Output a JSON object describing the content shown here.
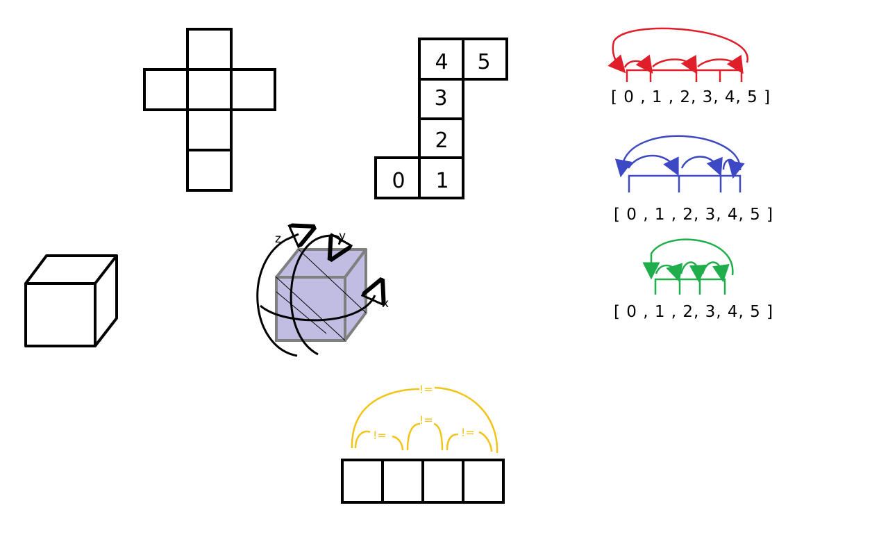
{
  "face_net_labels": [
    "0",
    "1",
    "2",
    "3",
    "4",
    "5"
  ],
  "index_arrays": [
    {
      "text": "[ 0 , 1 , 2, 3, 4, 5 ]",
      "color": "#e01e2a"
    },
    {
      "text": "[ 0 , 1 , 2, 3, 4, 5 ]",
      "color": "#3c48c4"
    },
    {
      "text": "[ 0 , 1 , 2, 3, 4, 5 ]",
      "color": "#1fae4b"
    }
  ],
  "rotation_axes": {
    "x": "x",
    "y": "y",
    "z": "z"
  },
  "cube_fill": "#c0bce2",
  "cube_stroke": "#7f7f7f",
  "not_equal_color": "#f2c417",
  "not_equal_labels": [
    "!=",
    "!=",
    "!=",
    "!="
  ]
}
